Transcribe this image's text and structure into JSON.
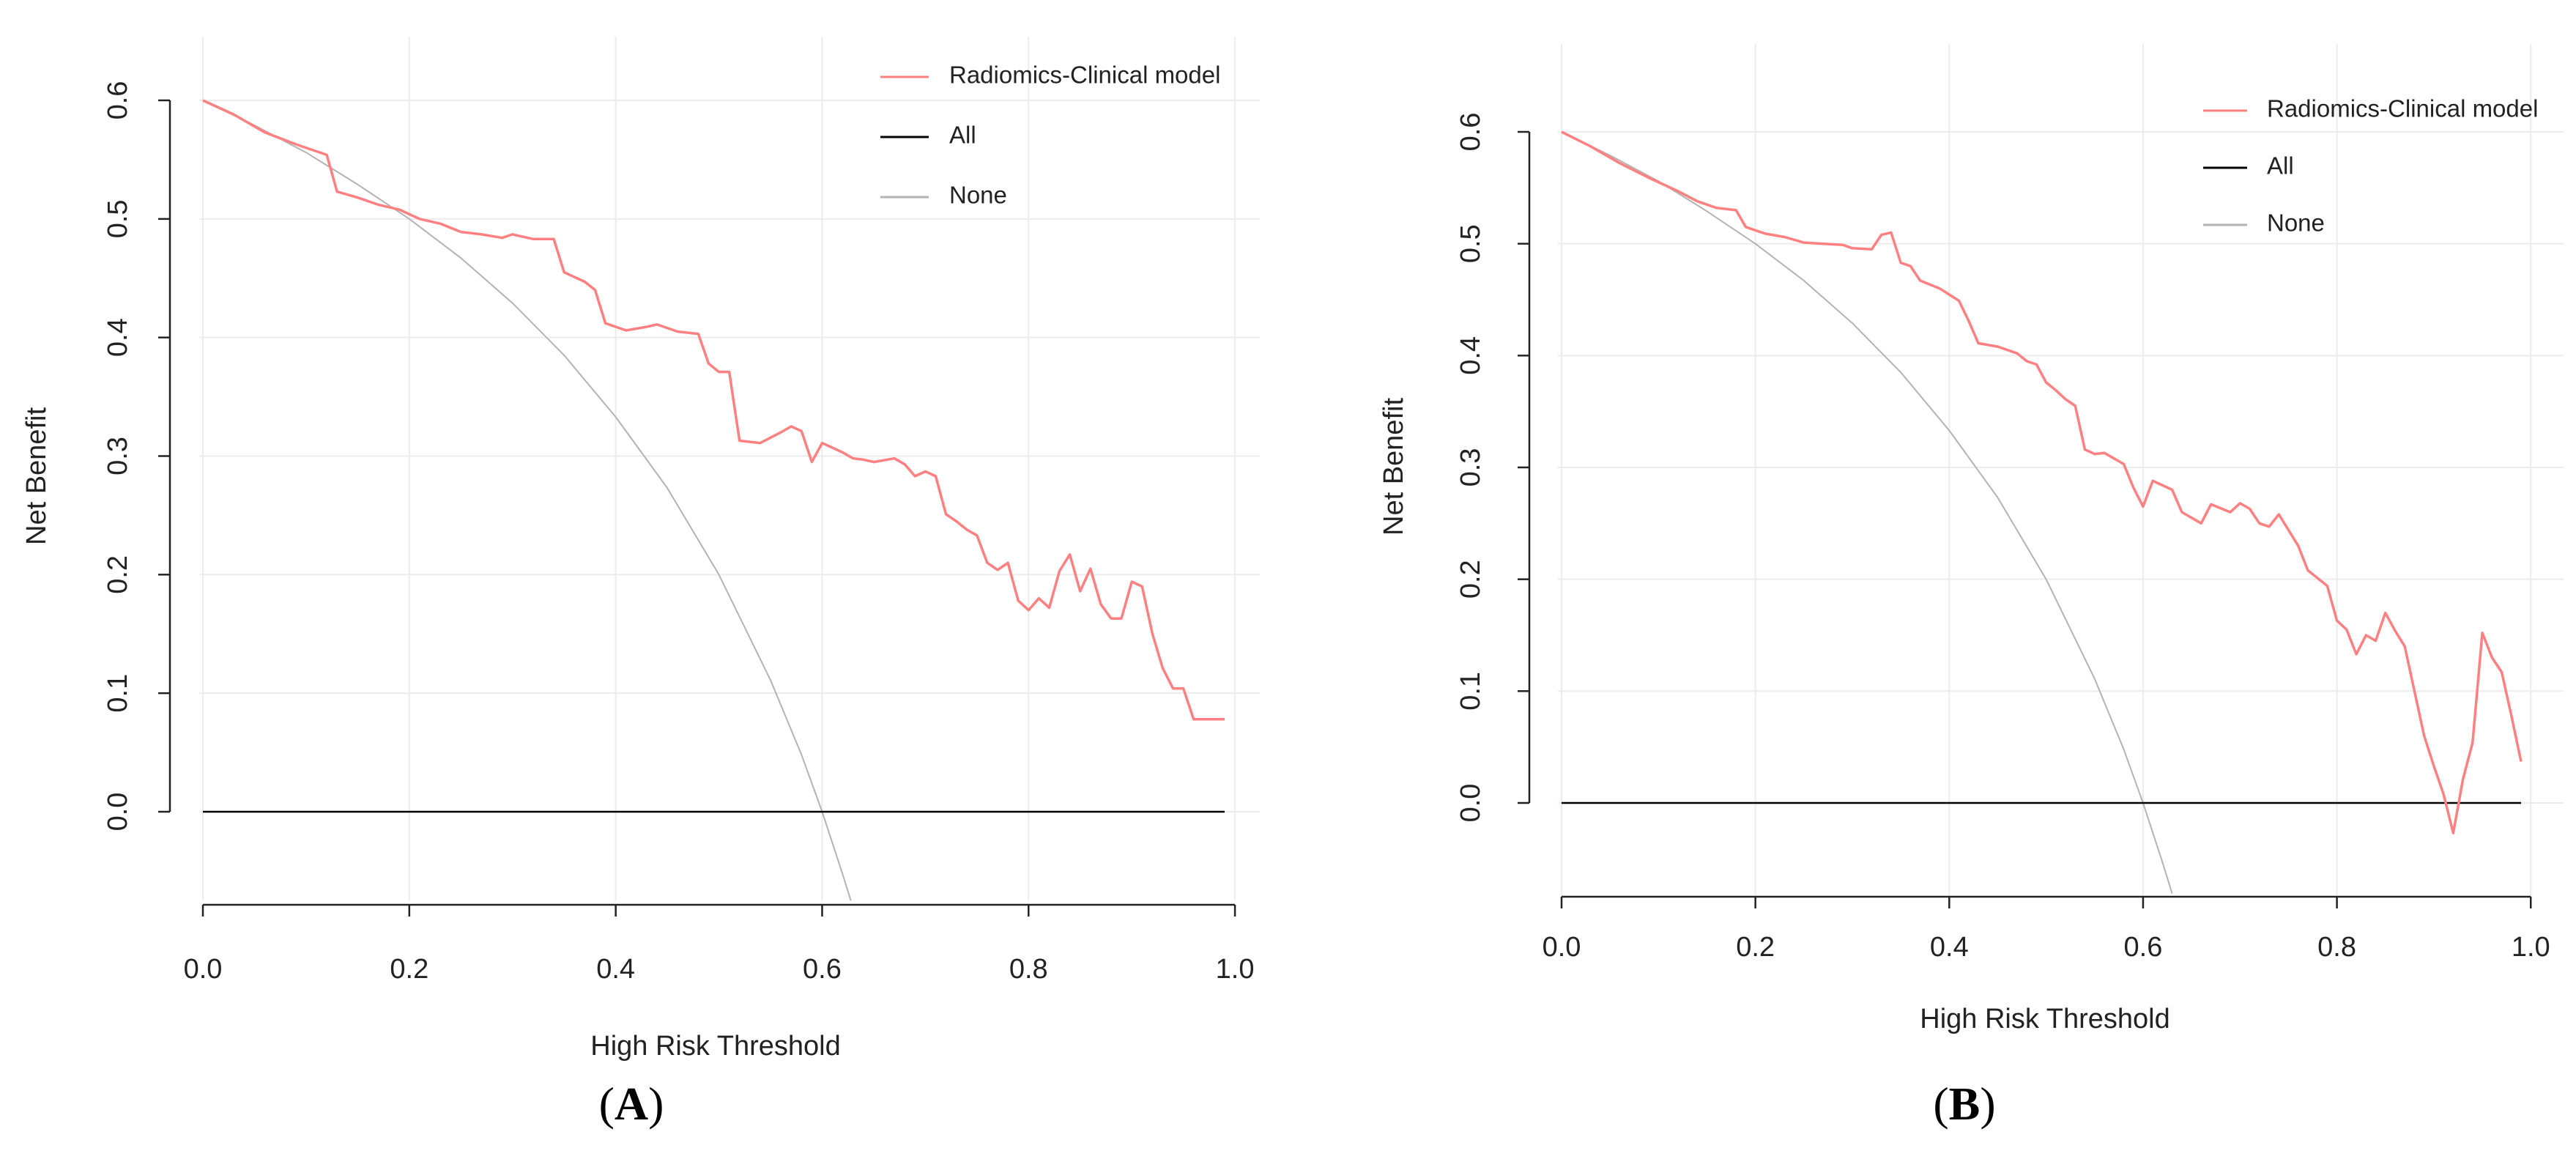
{
  "figure": {
    "panels": [
      {
        "label": "A",
        "caption_open": "(",
        "caption_letter": "A",
        "caption_close": ")"
      },
      {
        "label": "B",
        "caption_open": "(",
        "caption_letter": "B",
        "caption_close": ")"
      }
    ]
  },
  "chart_data": [
    {
      "type": "line",
      "panel": "A",
      "title": "",
      "xlabel": "High Risk Threshold",
      "ylabel": "Net Benefit",
      "xlim": [
        0,
        0.99
      ],
      "ylim": [
        -0.075,
        0.6
      ],
      "x_ticks": [
        0.0,
        0.2,
        0.4,
        0.6,
        0.8,
        1.0
      ],
      "x_tick_labels": [
        "0.0",
        "0.2",
        "0.4",
        "0.6",
        "0.8",
        "1.0"
      ],
      "y_ticks": [
        0.0,
        0.1,
        0.2,
        0.3,
        0.4,
        0.5,
        0.6
      ],
      "y_tick_labels": [
        "0.0",
        "0.1",
        "0.2",
        "0.3",
        "0.4",
        "0.5",
        "0.6"
      ],
      "grid": true,
      "legend_position": "top-right",
      "legend": [
        {
          "name": "Radiomics-Clinical model",
          "color": "#ff8080"
        },
        {
          "name": "All",
          "color": "#000000"
        },
        {
          "name": "None",
          "color": "#b3b3b3"
        }
      ],
      "series": [
        {
          "name": "Radiomics-Clinical model",
          "color": "#ff8080",
          "points": [
            [
              0.0,
              0.6
            ],
            [
              0.03,
              0.588
            ],
            [
              0.06,
              0.573
            ],
            [
              0.09,
              0.563
            ],
            [
              0.12,
              0.554
            ],
            [
              0.13,
              0.523
            ],
            [
              0.15,
              0.518
            ],
            [
              0.17,
              0.512
            ],
            [
              0.19,
              0.508
            ],
            [
              0.21,
              0.5
            ],
            [
              0.23,
              0.496
            ],
            [
              0.25,
              0.489
            ],
            [
              0.27,
              0.487
            ],
            [
              0.29,
              0.484
            ],
            [
              0.3,
              0.487
            ],
            [
              0.32,
              0.483
            ],
            [
              0.34,
              0.483
            ],
            [
              0.35,
              0.455
            ],
            [
              0.37,
              0.447
            ],
            [
              0.38,
              0.44
            ],
            [
              0.39,
              0.412
            ],
            [
              0.41,
              0.406
            ],
            [
              0.43,
              0.409
            ],
            [
              0.44,
              0.411
            ],
            [
              0.46,
              0.405
            ],
            [
              0.48,
              0.403
            ],
            [
              0.49,
              0.378
            ],
            [
              0.5,
              0.371
            ],
            [
              0.51,
              0.371
            ],
            [
              0.52,
              0.313
            ],
            [
              0.54,
              0.311
            ],
            [
              0.56,
              0.32
            ],
            [
              0.57,
              0.325
            ],
            [
              0.58,
              0.321
            ],
            [
              0.59,
              0.295
            ],
            [
              0.6,
              0.311
            ],
            [
              0.62,
              0.303
            ],
            [
              0.63,
              0.298
            ],
            [
              0.64,
              0.297
            ],
            [
              0.65,
              0.295
            ],
            [
              0.67,
              0.298
            ],
            [
              0.68,
              0.293
            ],
            [
              0.69,
              0.283
            ],
            [
              0.7,
              0.287
            ],
            [
              0.71,
              0.283
            ],
            [
              0.72,
              0.251
            ],
            [
              0.73,
              0.245
            ],
            [
              0.74,
              0.238
            ],
            [
              0.75,
              0.233
            ],
            [
              0.76,
              0.21
            ],
            [
              0.77,
              0.204
            ],
            [
              0.78,
              0.21
            ],
            [
              0.79,
              0.178
            ],
            [
              0.8,
              0.17
            ],
            [
              0.81,
              0.18
            ],
            [
              0.82,
              0.172
            ],
            [
              0.83,
              0.203
            ],
            [
              0.84,
              0.217
            ],
            [
              0.85,
              0.186
            ],
            [
              0.86,
              0.205
            ],
            [
              0.87,
              0.175
            ],
            [
              0.88,
              0.163
            ],
            [
              0.89,
              0.163
            ],
            [
              0.9,
              0.194
            ],
            [
              0.91,
              0.19
            ],
            [
              0.92,
              0.15
            ],
            [
              0.93,
              0.121
            ],
            [
              0.94,
              0.104
            ],
            [
              0.95,
              0.104
            ],
            [
              0.96,
              0.078
            ],
            [
              0.99,
              0.078
            ]
          ]
        },
        {
          "name": "All",
          "color": "#000000",
          "points": [
            [
              0.0,
              0.0
            ],
            [
              0.99,
              0.0
            ]
          ]
        },
        {
          "name": "None",
          "color": "#b3b3b3",
          "formula": "0.6 - 0.4*t/(1-t)",
          "points": [
            [
              0.0,
              0.6
            ],
            [
              0.05,
              0.579
            ],
            [
              0.1,
              0.556
            ],
            [
              0.15,
              0.529
            ],
            [
              0.2,
              0.5
            ],
            [
              0.25,
              0.467
            ],
            [
              0.3,
              0.429
            ],
            [
              0.35,
              0.385
            ],
            [
              0.4,
              0.333
            ],
            [
              0.45,
              0.273
            ],
            [
              0.5,
              0.2
            ],
            [
              0.55,
              0.111
            ],
            [
              0.58,
              0.048
            ],
            [
              0.6,
              0.0
            ],
            [
              0.62,
              -0.053
            ],
            [
              0.63,
              -0.081
            ]
          ]
        }
      ]
    },
    {
      "type": "line",
      "panel": "B",
      "title": "",
      "xlabel": "High Risk Threshold",
      "ylabel": "Net Benefit",
      "xlim": [
        0,
        0.99
      ],
      "ylim": [
        -0.085,
        0.6
      ],
      "x_ticks": [
        0.0,
        0.2,
        0.4,
        0.6,
        0.8,
        1.0
      ],
      "x_tick_labels": [
        "0.0",
        "0.2",
        "0.4",
        "0.6",
        "0.8",
        "1.0"
      ],
      "y_ticks": [
        0.0,
        0.1,
        0.2,
        0.3,
        0.4,
        0.5,
        0.6
      ],
      "y_tick_labels": [
        "0.0",
        "0.1",
        "0.2",
        "0.3",
        "0.4",
        "0.5",
        "0.6"
      ],
      "grid": true,
      "legend_position": "top-right",
      "legend": [
        {
          "name": "Radiomics-Clinical model",
          "color": "#ff8080"
        },
        {
          "name": "All",
          "color": "#000000"
        },
        {
          "name": "None",
          "color": "#b3b3b3"
        }
      ],
      "series": [
        {
          "name": "Radiomics-Clinical model",
          "color": "#ff8080",
          "points": [
            [
              0.0,
              0.6
            ],
            [
              0.03,
              0.587
            ],
            [
              0.06,
              0.572
            ],
            [
              0.09,
              0.559
            ],
            [
              0.12,
              0.547
            ],
            [
              0.14,
              0.538
            ],
            [
              0.16,
              0.532
            ],
            [
              0.18,
              0.53
            ],
            [
              0.19,
              0.515
            ],
            [
              0.21,
              0.509
            ],
            [
              0.23,
              0.506
            ],
            [
              0.25,
              0.501
            ],
            [
              0.27,
              0.5
            ],
            [
              0.29,
              0.499
            ],
            [
              0.3,
              0.496
            ],
            [
              0.32,
              0.495
            ],
            [
              0.33,
              0.508
            ],
            [
              0.34,
              0.51
            ],
            [
              0.35,
              0.483
            ],
            [
              0.36,
              0.48
            ],
            [
              0.37,
              0.467
            ],
            [
              0.39,
              0.46
            ],
            [
              0.41,
              0.449
            ],
            [
              0.42,
              0.431
            ],
            [
              0.43,
              0.411
            ],
            [
              0.45,
              0.408
            ],
            [
              0.47,
              0.402
            ],
            [
              0.48,
              0.395
            ],
            [
              0.49,
              0.392
            ],
            [
              0.5,
              0.376
            ],
            [
              0.51,
              0.369
            ],
            [
              0.52,
              0.361
            ],
            [
              0.53,
              0.355
            ],
            [
              0.54,
              0.316
            ],
            [
              0.55,
              0.312
            ],
            [
              0.56,
              0.313
            ],
            [
              0.58,
              0.303
            ],
            [
              0.59,
              0.282
            ],
            [
              0.6,
              0.265
            ],
            [
              0.61,
              0.288
            ],
            [
              0.63,
              0.28
            ],
            [
              0.64,
              0.26
            ],
            [
              0.66,
              0.25
            ],
            [
              0.67,
              0.267
            ],
            [
              0.69,
              0.26
            ],
            [
              0.7,
              0.268
            ],
            [
              0.71,
              0.263
            ],
            [
              0.72,
              0.25
            ],
            [
              0.73,
              0.247
            ],
            [
              0.74,
              0.258
            ],
            [
              0.76,
              0.23
            ],
            [
              0.77,
              0.208
            ],
            [
              0.79,
              0.194
            ],
            [
              0.8,
              0.163
            ],
            [
              0.81,
              0.155
            ],
            [
              0.82,
              0.133
            ],
            [
              0.83,
              0.15
            ],
            [
              0.84,
              0.145
            ],
            [
              0.85,
              0.17
            ],
            [
              0.86,
              0.154
            ],
            [
              0.87,
              0.14
            ],
            [
              0.88,
              0.1
            ],
            [
              0.89,
              0.06
            ],
            [
              0.9,
              0.033
            ],
            [
              0.91,
              0.008
            ],
            [
              0.92,
              -0.027
            ],
            [
              0.93,
              0.021
            ],
            [
              0.94,
              0.054
            ],
            [
              0.95,
              0.152
            ],
            [
              0.96,
              0.13
            ],
            [
              0.97,
              0.117
            ],
            [
              0.98,
              0.078
            ],
            [
              0.99,
              0.037
            ]
          ]
        },
        {
          "name": "All",
          "color": "#000000",
          "points": [
            [
              0.0,
              0.0
            ],
            [
              0.99,
              0.0
            ]
          ]
        },
        {
          "name": "None",
          "color": "#b3b3b3",
          "formula": "0.6 - 0.4*t/(1-t)",
          "points": [
            [
              0.0,
              0.6
            ],
            [
              0.05,
              0.579
            ],
            [
              0.1,
              0.556
            ],
            [
              0.15,
              0.529
            ],
            [
              0.2,
              0.5
            ],
            [
              0.25,
              0.467
            ],
            [
              0.3,
              0.429
            ],
            [
              0.35,
              0.385
            ],
            [
              0.4,
              0.333
            ],
            [
              0.45,
              0.273
            ],
            [
              0.5,
              0.2
            ],
            [
              0.55,
              0.111
            ],
            [
              0.58,
              0.048
            ],
            [
              0.6,
              0.0
            ],
            [
              0.62,
              -0.053
            ],
            [
              0.63,
              -0.081
            ]
          ]
        }
      ]
    }
  ]
}
